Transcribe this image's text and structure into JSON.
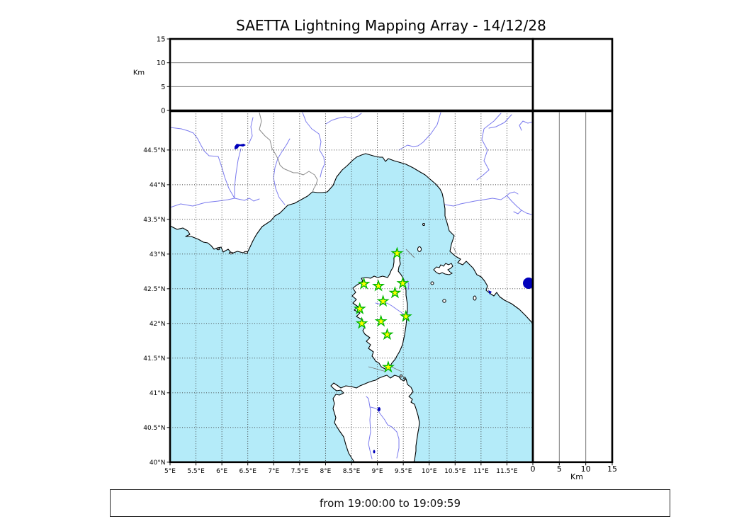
{
  "title": "SAETTA Lightning Mapping Array - 14/12/28",
  "time_label": "from 19:00:00 to 19:09:59",
  "colors": {
    "sea": "#b4ebf9",
    "land": "#ffffff",
    "coastline": "#000000",
    "river": "#7b7bee",
    "country_border": "#8a8a8a",
    "gridline": "#3c3c3c",
    "station_fill": "#ffff00",
    "station_edge": "#00b800",
    "lake_fill": "#0000bb",
    "frame": "#000000"
  },
  "axes": {
    "map": {
      "lon_labels": [
        "5°E",
        "5.5°E",
        "6°E",
        "6.5°E",
        "7°E",
        "7.5°E",
        "8°E",
        "8.5°E",
        "9°E",
        "9.5°E",
        "10°E",
        "10.5°E",
        "11°E",
        "11.5°E"
      ],
      "lon_values": [
        5,
        5.5,
        6,
        6.5,
        7,
        7.5,
        8,
        8.5,
        9,
        9.5,
        10,
        10.5,
        11,
        11.5
      ],
      "lat_labels": [
        "40°N",
        "40.5°N",
        "41°N",
        "41.5°N",
        "42°N",
        "42.5°N",
        "43°N",
        "43.5°N",
        "44°N",
        "44.5°N"
      ],
      "lat_values": [
        40,
        40.5,
        41,
        41.5,
        42,
        42.5,
        43,
        43.5,
        44,
        44.5
      ]
    },
    "alt_left": {
      "unit": "Km",
      "labels": [
        "0",
        "5",
        "10",
        "15"
      ],
      "values": [
        0,
        5,
        10,
        15
      ],
      "inner_lines": [
        5,
        10
      ]
    },
    "alt_bottom": {
      "unit": "Km",
      "labels": [
        "0",
        "5",
        "10",
        "15"
      ],
      "values": [
        0,
        5,
        10,
        15
      ],
      "inner_lines": [
        5,
        10
      ]
    }
  },
  "chart_data": {
    "type": "scatter",
    "title": "SAETTA Lightning Mapping Array - 14/12/28",
    "date": "14/12/28",
    "time_window": {
      "from": "19:00:00",
      "to": "19:09:59"
    },
    "map_panel": {
      "description": "Geographic map of the northwestern Mediterranean (SE France, NW Italy, Corsica, northern Sardinia) with SAETTA LMA station locations marked as stars",
      "lon_range_deg_e": [
        5,
        12.0
      ],
      "lat_range_deg_n": [
        40,
        45.06
      ],
      "grid_step_deg": 0.5,
      "stations_lon_lat_deg": [
        [
          9.38,
          43.01
        ],
        [
          8.74,
          42.57
        ],
        [
          9.02,
          42.54
        ],
        [
          9.49,
          42.58
        ],
        [
          9.34,
          42.44
        ],
        [
          9.11,
          42.32
        ],
        [
          8.66,
          42.21
        ],
        [
          9.55,
          42.1
        ],
        [
          8.7,
          42.0
        ],
        [
          9.07,
          42.03
        ],
        [
          9.19,
          41.84
        ],
        [
          9.21,
          41.37
        ]
      ],
      "lightning_sources": []
    },
    "altitude_panels": {
      "axis_label": "Km",
      "range_km": [
        0,
        15
      ],
      "ticks_km": [
        0,
        5,
        10,
        15
      ],
      "gridlines_km": [
        5,
        10
      ],
      "points": []
    }
  }
}
